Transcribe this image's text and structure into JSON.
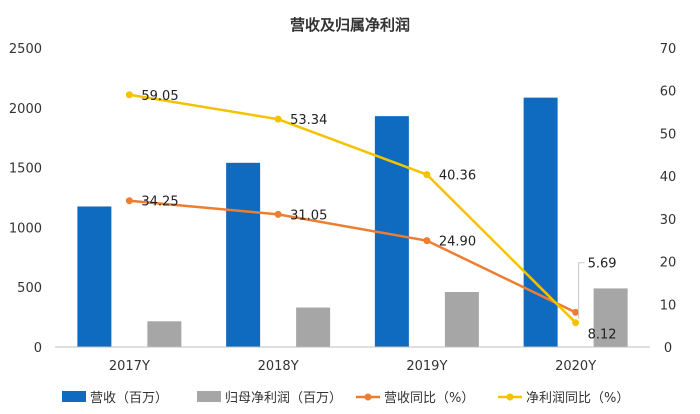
{
  "chart_data": {
    "type": "bar+line",
    "title": "营收及归属净利润",
    "categories": [
      "2017Y",
      "2018Y",
      "2019Y",
      "2020Y"
    ],
    "left_axis": {
      "min": 0,
      "max": 2500,
      "ticks": [
        "0",
        "500",
        "1000",
        "1500",
        "2000",
        "2500"
      ]
    },
    "right_axis": {
      "min": 0,
      "max": 70,
      "ticks": [
        "0",
        "10",
        "20",
        "30",
        "40",
        "50",
        "60",
        "70"
      ]
    },
    "bars": [
      {
        "name": "营收（百万）",
        "color": "#0e6bbf",
        "values": [
          1175,
          1540,
          1930,
          2085
        ]
      },
      {
        "name": "归母净利润（百万）",
        "color": "#a6a6a6",
        "values": [
          215,
          330,
          460,
          490
        ]
      }
    ],
    "lines": [
      {
        "name": "营收同比（%）",
        "color": "#ed7d31",
        "values": [
          34.25,
          31.05,
          24.9,
          8.12
        ],
        "labels": [
          "34.25",
          "31.05",
          "24.90",
          "8.12"
        ]
      },
      {
        "name": "净利润同比（%）",
        "color": "#f5c200",
        "values": [
          59.05,
          53.34,
          40.36,
          5.69
        ],
        "labels": [
          "59.05",
          "53.34",
          "40.36",
          "5.69"
        ]
      }
    ],
    "legend": "bottom",
    "grid": false
  }
}
